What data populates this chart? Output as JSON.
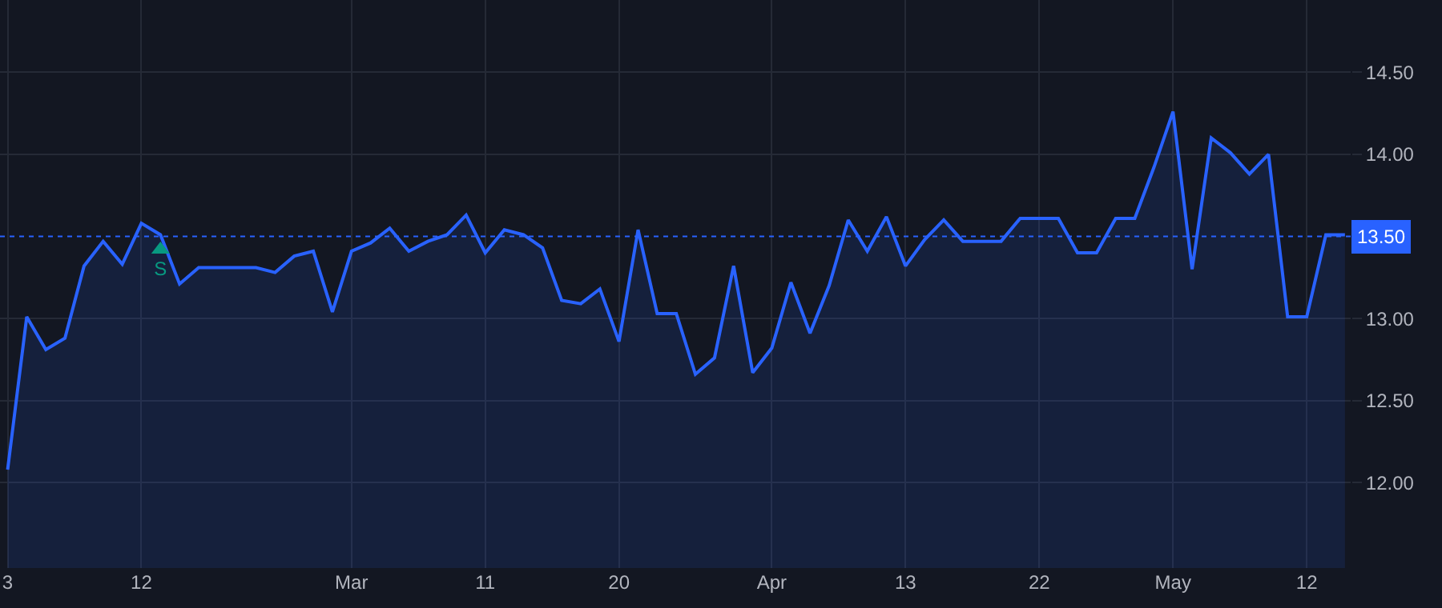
{
  "chart_data": {
    "type": "area",
    "categories": [
      "3",
      null,
      null,
      null,
      null,
      null,
      null,
      "12",
      null,
      null,
      null,
      null,
      null,
      null,
      null,
      null,
      null,
      null,
      "Mar",
      null,
      null,
      null,
      null,
      null,
      null,
      "11",
      null,
      null,
      null,
      null,
      null,
      null,
      "20",
      null,
      null,
      null,
      null,
      null,
      null,
      null,
      "Apr",
      null,
      null,
      null,
      null,
      null,
      null,
      "13",
      null,
      null,
      null,
      null,
      null,
      null,
      "22",
      null,
      null,
      null,
      null,
      null,
      null,
      "May",
      null,
      null,
      null,
      null,
      null,
      null,
      "12",
      null,
      null
    ],
    "series": [
      {
        "color": "#2962ff",
        "values": [
          12.08,
          13.01,
          12.81,
          12.88,
          13.32,
          13.47,
          13.33,
          13.58,
          13.51,
          13.21,
          13.31,
          13.31,
          13.31,
          13.31,
          13.28,
          13.38,
          13.41,
          13.04,
          13.41,
          13.46,
          13.55,
          13.41,
          13.47,
          13.51,
          13.63,
          13.4,
          13.54,
          13.51,
          13.43,
          13.11,
          13.09,
          13.18,
          12.86,
          13.54,
          13.03,
          13.03,
          12.66,
          12.76,
          13.32,
          12.67,
          12.82,
          13.22,
          12.91,
          13.2,
          13.6,
          13.41,
          13.62,
          13.32,
          13.48,
          13.6,
          13.47,
          13.47,
          13.47,
          13.61,
          13.61,
          13.61,
          13.4,
          13.4,
          13.61,
          13.61,
          13.92,
          14.26,
          13.3,
          14.1,
          14.01,
          13.88,
          14.0,
          13.01,
          13.01,
          13.51,
          13.51
        ]
      },
      {
        "type": "scatter",
        "marker": "triangle",
        "color": "#089981",
        "values": [
          null,
          null,
          null,
          null,
          null,
          null,
          null,
          null,
          13.42,
          null,
          null,
          null,
          null,
          null,
          null,
          null,
          null,
          null,
          null,
          null,
          null,
          null,
          null,
          null,
          null,
          null,
          null,
          null,
          null,
          null,
          null,
          null,
          null,
          null,
          null,
          null,
          null,
          null,
          null,
          null,
          null,
          null,
          null,
          null,
          null,
          null,
          null,
          null,
          null,
          null,
          null,
          null,
          null,
          null,
          null,
          null,
          null,
          null,
          null,
          null,
          null,
          null,
          null,
          null,
          null,
          null,
          null,
          null,
          null,
          null,
          null
        ],
        "value_labels": [
          null,
          null,
          null,
          null,
          null,
          null,
          null,
          null,
          "S",
          null,
          null,
          null,
          null,
          null,
          null,
          null,
          null,
          null,
          null,
          null,
          null,
          null,
          null,
          null,
          null,
          null,
          null,
          null,
          null,
          null,
          null,
          null,
          null,
          null,
          null,
          null,
          null,
          null,
          null,
          null,
          null,
          null,
          null,
          null,
          null,
          null,
          null,
          null,
          null,
          null,
          null,
          null,
          null,
          null,
          null,
          null,
          null,
          null,
          null,
          null,
          null,
          null,
          null,
          null,
          null,
          null,
          null,
          null,
          null,
          null,
          null
        ]
      }
    ],
    "ylim": [
      11.48,
      14.94
    ],
    "yticks": [
      {
        "value": 12,
        "label": "12.00"
      },
      {
        "value": 12.5,
        "label": "12.50"
      },
      {
        "value": 13,
        "label": "13.00"
      },
      {
        "value": 14,
        "label": "14.00"
      },
      {
        "value": 14.5,
        "label": "14.50"
      }
    ],
    "ref_lines": [
      {
        "axis": "y",
        "value": 13.5,
        "label": "13.50",
        "color": "#2962ff",
        "line_style": "dotted"
      }
    ],
    "grid": true,
    "marker": "none",
    "line_style": "solid"
  }
}
